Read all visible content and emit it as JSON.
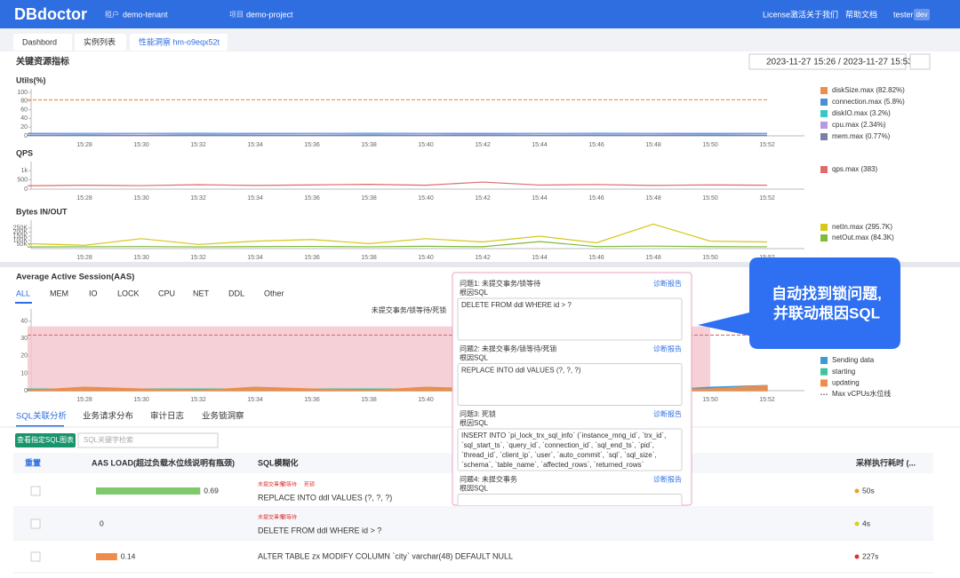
{
  "header": {
    "logo": "DBdoctor",
    "tenant_label": "租户",
    "tenant": "demo-tenant",
    "project_label": "项目",
    "project": "demo-project",
    "links": [
      "License激活",
      "关于我们",
      "帮助文档"
    ],
    "user": "tester",
    "user_tag": "dev"
  },
  "tabs": [
    "Dashbord",
    "实例列表",
    "性能洞察 hm-o9eqx52t"
  ],
  "section_title": "关键资源指标",
  "time_range": "2023-11-27 15:26 / 2023-11-27 15:53",
  "chart_data": [
    {
      "type": "line",
      "title": "Utils(%)",
      "categories": [
        null,
        "15:28",
        "15:30",
        "15:32",
        "15:34",
        "15:36",
        "15:38",
        "15:40",
        "15:42",
        "15:44",
        "15:46",
        "15:48",
        "15:50",
        "15:52"
      ],
      "ylim": [
        0,
        100
      ],
      "yticks": [
        0,
        20,
        40,
        60,
        80,
        100
      ],
      "series": [
        {
          "name": "diskSize.max (82.82%)",
          "color": "#f08c4a",
          "dash": true,
          "values": [
            82.6,
            82.7,
            82.7,
            82.8,
            82.8,
            82.8,
            82.8,
            82.8,
            82.8,
            82.8,
            82.8,
            82.8,
            82.8,
            82.8
          ]
        },
        {
          "name": "connection.max (5.8%)",
          "color": "#4a8fd6",
          "values": [
            5.6,
            5.7,
            5.7,
            5.8,
            5.6,
            5.7,
            5.8,
            5.7,
            5.6,
            5.7,
            5.8,
            5.7,
            5.6,
            5.7
          ]
        },
        {
          "name": "diskIO.max (3.2%)",
          "color": "#3cc5c8",
          "values": [
            2.1,
            2.8,
            1.9,
            3.2,
            2.4,
            2.0,
            2.9,
            2.2,
            3.0,
            2.1,
            2.6,
            2.3,
            2.8,
            2.0
          ]
        },
        {
          "name": "cpu.max (2.34%)",
          "color": "#b59ce0",
          "values": [
            1.8,
            2.1,
            1.9,
            2.3,
            2.0,
            1.9,
            2.2,
            2.0,
            2.3,
            1.9,
            2.1,
            2.0,
            2.2,
            1.9
          ]
        },
        {
          "name": "mem.max (0.77%)",
          "color": "#7b7fa8",
          "values": [
            0.76,
            0.77,
            0.76,
            0.77,
            0.76,
            0.77,
            0.76,
            0.77,
            0.76,
            0.77,
            0.76,
            0.77,
            0.76,
            0.77
          ]
        }
      ]
    },
    {
      "type": "line",
      "title": "QPS",
      "categories": [
        null,
        "15:28",
        "15:30",
        "15:32",
        "15:34",
        "15:36",
        "15:38",
        "15:40",
        "15:42",
        "15:44",
        "15:46",
        "15:48",
        "15:50",
        "15:52"
      ],
      "ylim": [
        0,
        1300
      ],
      "yticks": [
        0,
        500,
        {
          "value": 1000,
          "label": "1k"
        }
      ],
      "series": [
        {
          "name": "qps.max (383)",
          "color": "#e06b6b",
          "values": [
            180,
            210,
            190,
            240,
            200,
            230,
            260,
            210,
            383,
            220,
            250,
            200,
            230,
            210
          ]
        }
      ]
    },
    {
      "type": "line",
      "title": "Bytes IN/OUT",
      "categories": [
        null,
        "15:28",
        "15:30",
        "15:32",
        "15:34",
        "15:36",
        "15:38",
        "15:40",
        "15:42",
        "15:44",
        "15:46",
        "15:48",
        "15:50",
        "15:52"
      ],
      "ylim": [
        0,
        300000
      ],
      "yticks": [
        {
          "value": 50000,
          "label": "50K"
        },
        {
          "value": 100000,
          "label": "100K"
        },
        {
          "value": 150000,
          "label": "150K"
        },
        {
          "value": 200000,
          "label": "200K"
        },
        {
          "value": 250000,
          "label": "250K"
        }
      ],
      "series": [
        {
          "name": "netIn.max (295.7K)",
          "color": "#d4c81a",
          "values": [
            60000,
            40000,
            120000,
            50000,
            90000,
            110000,
            60000,
            120000,
            80000,
            150000,
            70000,
            295700,
            90000,
            80000
          ]
        },
        {
          "name": "netOut.max (84.3K)",
          "color": "#7dbb3a",
          "values": [
            20000,
            22000,
            25000,
            21000,
            24000,
            26000,
            22000,
            28000,
            23000,
            84300,
            25000,
            30000,
            24000,
            22000
          ]
        }
      ]
    },
    {
      "type": "area",
      "title": "Average Active Session(AAS)",
      "categories": [
        null,
        "15:28",
        "15:30",
        "15:32",
        "15:34",
        "15:36",
        "15:38",
        "15:40",
        "15:42",
        "15:44",
        "15:46",
        "15:48",
        "15:50",
        "15:52"
      ],
      "ylim": [
        0,
        45
      ],
      "yticks": [
        0,
        10,
        20,
        30,
        40
      ],
      "series": [
        {
          "name": "未提交事务/锁等待/死锁",
          "color": "#f2c4cc",
          "area": true,
          "annotation": true,
          "values": [
            37,
            37,
            37,
            37,
            37,
            37,
            37,
            37,
            37,
            37,
            37,
            37,
            37,
            null
          ]
        },
        {
          "name": "Sending data",
          "color": "#3a9ad9",
          "area": true,
          "values": [
            0,
            1,
            0,
            0,
            1,
            0,
            0,
            1,
            0,
            1,
            0,
            0,
            2,
            3
          ]
        },
        {
          "name": "starting",
          "color": "#3cc59c",
          "area": true,
          "values": [
            1,
            1,
            1,
            1,
            1,
            1,
            1,
            1,
            1,
            1,
            1,
            1,
            1,
            1
          ]
        },
        {
          "name": "updating",
          "color": "#f08c4a",
          "area": true,
          "values": [
            0,
            2,
            1,
            0,
            2,
            1,
            0,
            2,
            1,
            0,
            2,
            1,
            1,
            3
          ]
        },
        {
          "name": "Max vCPUs水位线",
          "color": "#e06b6b",
          "dash": true,
          "values": [
            32,
            32,
            32,
            32,
            32,
            32,
            32,
            32,
            32,
            32,
            32,
            32,
            32,
            32
          ]
        }
      ]
    }
  ],
  "aas_filters": [
    "ALL",
    "MEM",
    "IO",
    "LOCK",
    "CPU",
    "NET",
    "DDL",
    "Other"
  ],
  "popup": {
    "issues": [
      {
        "title": "问题1: 未提交事务/锁等待",
        "label": "根因SQL",
        "link": "诊断报告",
        "sql": [
          "DELETE FROM ddl WHERE id > ?"
        ]
      },
      {
        "title": "问题2: 未提交事务/锁等待/死锁",
        "label": "根因SQL",
        "link": "诊断报告",
        "sql": [
          "REPLACE INTO ddl VALUES (?, ?, ?)"
        ]
      },
      {
        "title": "问题3: 死锁",
        "label": "根因SQL",
        "link": "诊断报告",
        "sql": [
          "INSERT INTO `pi_lock_trx_sql_info` (`instance_mng_id`, `trx_id`,",
          "`sql_start_ts`, `query_id`, `connection_id`, `sql_end_ts`, `pid`,",
          "`thread_id`, `client_ip`, `user`, `auto_commit`, `sql`, `sql_size`,",
          "`schema`, `table_name`, `affected_rows`, `returned_rows`"
        ]
      },
      {
        "title": "问题4: 未提交事务",
        "label": "根因SQL",
        "link": "诊断报告"
      }
    ]
  },
  "callout": [
    "自动找到锁问题,",
    "并联动根因SQL"
  ],
  "bottom_tabs": [
    "SQL关联分析",
    "业务请求分布",
    "审计日志",
    "业务锁洞察"
  ],
  "button": "查看指定SQL图表",
  "search_placeholder": "SQL关键字检索",
  "table": {
    "headers": [
      "重置",
      "AAS LOAD(超过负载水位线说明有瓶颈)",
      "SQL模糊化",
      "采样执行耗时 (..."
    ],
    "rows": [
      {
        "tags": [
          "未提交事务",
          "锁等待",
          "死锁"
        ],
        "load": 0.69,
        "color": "#7fc96b",
        "sql": "REPLACE INTO ddl VALUES (?, ?, ?)",
        "time": "50s",
        "dot_color": "#f0a020"
      },
      {
        "tags": [
          "未提交事务",
          "锁等待"
        ],
        "load": 0,
        "color": "#7fc96b",
        "sql": "DELETE FROM ddl WHERE id > ?",
        "time": "4s",
        "dot_color": "#d8d020"
      },
      {
        "load": 0.14,
        "color": "#f08c4a",
        "sql": "ALTER TABLE zx MODIFY COLUMN `city` varchar(48) DEFAULT NULL",
        "time": "227s",
        "dot_color": "#e03030"
      }
    ]
  }
}
